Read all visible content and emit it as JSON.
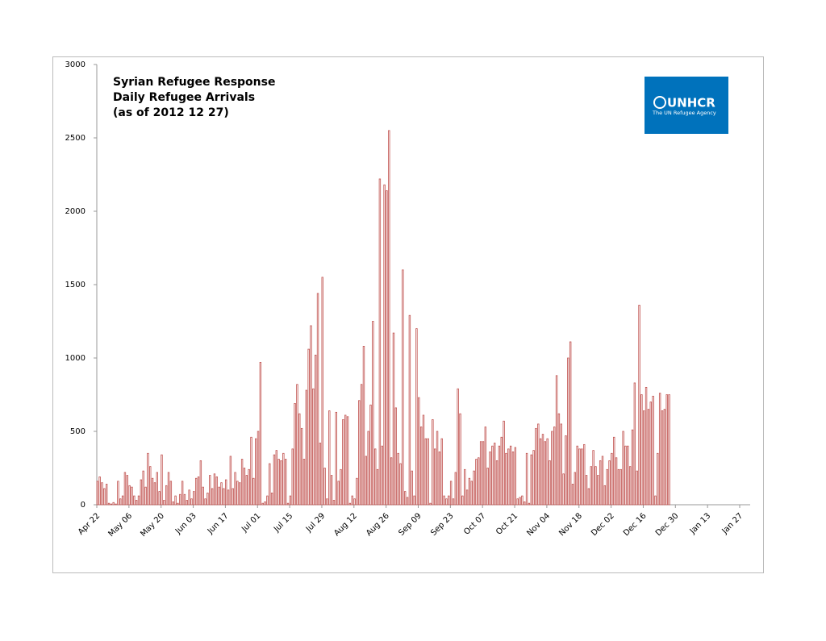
{
  "chart_data": {
    "type": "bar",
    "title_lines": [
      "Syrian Refugee Response",
      "Daily Refugee Arrivals",
      "(as of 2012 12 27)"
    ],
    "logo": {
      "name": "UNHCR",
      "tagline": "The UN Refugee Agency"
    },
    "color": "#c0504d",
    "categories": [
      "Apr 22",
      null,
      null,
      null,
      null,
      null,
      null,
      null,
      null,
      null,
      null,
      null,
      null,
      null,
      "May 06",
      null,
      null,
      null,
      null,
      null,
      null,
      null,
      null,
      null,
      null,
      null,
      null,
      null,
      "May 20",
      null,
      null,
      null,
      null,
      null,
      null,
      null,
      null,
      null,
      null,
      null,
      null,
      null,
      "Jun 03",
      null,
      null,
      null,
      null,
      null,
      null,
      null,
      null,
      null,
      null,
      null,
      null,
      null,
      "Jun 17",
      null,
      null,
      null,
      null,
      null,
      null,
      null,
      null,
      null,
      null,
      null,
      null,
      null,
      "Jul 01",
      null,
      null,
      null,
      null,
      null,
      null,
      null,
      null,
      null,
      null,
      null,
      null,
      null,
      "Jul 15",
      null,
      null,
      null,
      null,
      null,
      null,
      null,
      null,
      null,
      null,
      null,
      null,
      null,
      "Jul 29",
      null,
      null,
      null,
      null,
      null,
      null,
      null,
      null,
      null,
      null,
      null,
      null,
      null,
      "Aug 12",
      null,
      null,
      null,
      null,
      null,
      null,
      null,
      null,
      null,
      null,
      null,
      null,
      null,
      "Aug 26",
      null,
      null,
      null,
      null,
      null,
      null,
      null,
      null,
      null,
      null,
      null,
      null,
      null,
      "Sep 09",
      null,
      null,
      null,
      null,
      null,
      null,
      null,
      null,
      null,
      null,
      null,
      null,
      null,
      "Sep 23",
      null,
      null,
      null,
      null,
      null,
      null,
      null,
      null,
      null,
      null,
      null,
      null,
      null,
      "Oct 07",
      null,
      null,
      null,
      null,
      null,
      null,
      null,
      null,
      null,
      null,
      null,
      null,
      null,
      "Oct 21",
      null,
      null,
      null,
      null,
      null,
      null,
      null,
      null,
      null,
      null,
      null,
      null,
      null,
      "Nov 04",
      null,
      null,
      null,
      null,
      null,
      null,
      null,
      null,
      null,
      null,
      null,
      null,
      null,
      "Nov 18",
      null,
      null,
      null,
      null,
      null,
      null,
      null,
      null,
      null,
      null,
      null,
      null,
      null,
      "Dec 02",
      null,
      null,
      null,
      null,
      null,
      null,
      null,
      null,
      null,
      null,
      null,
      null,
      null,
      "Dec 16",
      null,
      null,
      null,
      null,
      null,
      null,
      null,
      null,
      null,
      null,
      null,
      null,
      null,
      "Dec 30",
      null,
      null,
      null,
      null,
      null,
      null,
      null,
      null,
      null,
      null,
      null,
      null,
      null,
      "Jan 13",
      null,
      null,
      null,
      null,
      null,
      null,
      null,
      null,
      null,
      null,
      null,
      null,
      null,
      "Jan 27"
    ],
    "values": [
      160,
      190,
      150,
      110,
      140,
      10,
      5,
      15,
      5,
      160,
      40,
      60,
      220,
      200,
      130,
      120,
      60,
      30,
      60,
      170,
      230,
      120,
      350,
      260,
      180,
      150,
      220,
      90,
      340,
      30,
      130,
      220,
      160,
      20,
      60,
      10,
      70,
      160,
      70,
      30,
      100,
      40,
      90,
      180,
      190,
      300,
      120,
      40,
      80,
      200,
      110,
      210,
      190,
      120,
      150,
      110,
      170,
      100,
      330,
      110,
      220,
      160,
      150,
      310,
      250,
      200,
      240,
      460,
      180,
      450,
      500,
      970,
      10,
      20,
      60,
      280,
      80,
      340,
      370,
      310,
      300,
      350,
      310,
      10,
      60,
      380,
      690,
      820,
      620,
      520,
      310,
      780,
      1060,
      1220,
      790,
      1020,
      1440,
      420,
      1550,
      250,
      40,
      640,
      200,
      30,
      630,
      160,
      240,
      580,
      610,
      600,
      10,
      60,
      40,
      180,
      710,
      820,
      1080,
      330,
      500,
      680,
      1250,
      380,
      240,
      2220,
      400,
      2180,
      2140,
      2550,
      320,
      1170,
      660,
      350,
      280,
      1600,
      90,
      50,
      1290,
      230,
      60,
      1200,
      730,
      530,
      610,
      450,
      450,
      10,
      580,
      380,
      500,
      360,
      450,
      60,
      40,
      60,
      160,
      40,
      220,
      790,
      620,
      60,
      240,
      100,
      180,
      160,
      230,
      310,
      320,
      430,
      430,
      530,
      250,
      360,
      400,
      420,
      300,
      400,
      460,
      570,
      350,
      380,
      400,
      360,
      390,
      40,
      50,
      60,
      20,
      350,
      10,
      340,
      370,
      520,
      550,
      450,
      480,
      430,
      450,
      300,
      500,
      530,
      880,
      620,
      550,
      210,
      470,
      1000,
      1110,
      140,
      220,
      400,
      380,
      380,
      410,
      200,
      110,
      260,
      370,
      260,
      200,
      300,
      330,
      130,
      240,
      300,
      350,
      460,
      320,
      240,
      240,
      500,
      400,
      400,
      260,
      510,
      830,
      230,
      1360,
      750,
      640,
      800,
      650,
      700,
      740,
      60,
      350,
      760,
      640,
      650,
      750,
      750,
      null,
      null,
      null,
      null,
      null,
      null,
      null,
      null,
      null,
      null,
      null,
      null,
      null,
      null,
      null,
      null,
      null,
      null,
      null,
      null,
      null,
      null,
      null,
      null,
      null,
      null,
      null,
      null,
      null,
      null,
      null
    ],
    "ylim": [
      0,
      3000
    ],
    "yticks": [
      0,
      500,
      1000,
      1500,
      2000,
      2500,
      3000
    ]
  }
}
